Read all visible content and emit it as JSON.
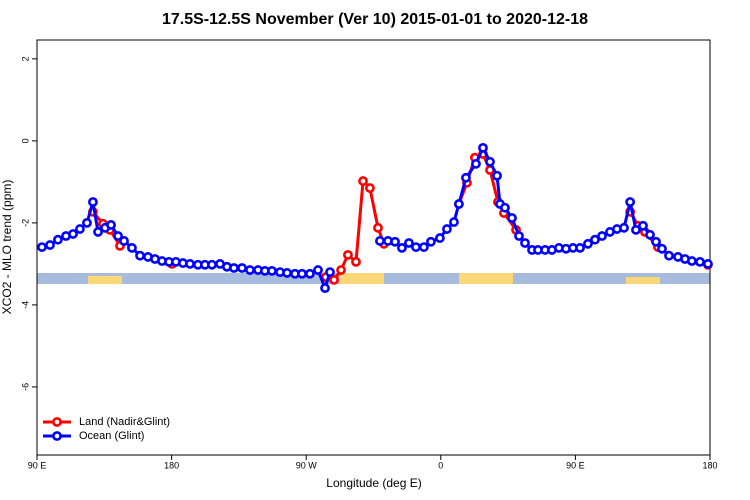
{
  "chart_data": {
    "type": "line",
    "title": "17.5S-12.5S November (Ver 10)   2015-01-01 to 2020-12-18",
    "x_label": "Longitude (deg E)",
    "y_label": "XCO2 - MLO trend (ppm)",
    "xlim": [
      90,
      540
    ],
    "ylim": [
      -7.66,
      2.46
    ],
    "xticks": [
      {
        "value": 90,
        "label": "90 E"
      },
      180,
      {
        "value": 270,
        "label": "90 W"
      },
      {
        "value": 360,
        "label": "0"
      },
      {
        "value": 450,
        "label": "90 E"
      },
      {
        "value": 540,
        "label": "180"
      }
    ],
    "yticks": [
      2,
      0,
      -2,
      -4,
      -6
    ],
    "legend": "bottom-left",
    "series": [
      {
        "name": "Land (Nadir&Glint)",
        "color": "#ff0000",
        "x": [
          127.4,
          134.1,
          138.8,
          145.5,
          null,
          180.3,
          null,
          283.2,
          288.6,
          293.3,
          297.9,
          303.3,
          308.0,
          312.6,
          318.0,
          322.0,
          null,
          372.1,
          377.5,
          382.8,
          388.2,
          392.9,
          398.2,
          402.2,
          410.3,
          null,
          486.6,
          491.9,
          496.5,
          505.2,
          null,
          538.6
        ],
        "values": [
          -1.73,
          -2.02,
          -2.17,
          -2.56,
          null,
          -3.0,
          null,
          -3.32,
          -3.39,
          -3.15,
          -2.78,
          -2.95,
          -0.98,
          -1.15,
          -2.12,
          -2.51,
          null,
          -1.54,
          -1.02,
          -0.41,
          -0.32,
          -0.71,
          -1.49,
          -1.76,
          -2.17,
          null,
          -1.73,
          -2.07,
          -2.22,
          -2.59,
          null,
          -3.02
        ]
      },
      {
        "name": "Ocean (Glint)",
        "color": "#0000ff",
        "x": [
          93.3,
          98.7,
          104.0,
          109.4,
          114.1,
          118.7,
          123.4,
          127.4,
          130.8,
          135.5,
          139.5,
          144.2,
          148.2,
          153.5,
          158.9,
          164.2,
          168.9,
          173.6,
          178.3,
          182.9,
          187.6,
          192.3,
          197.6,
          202.3,
          207.0,
          212.4,
          217.0,
          221.7,
          227.1,
          232.4,
          237.8,
          242.4,
          247.1,
          252.5,
          257.2,
          262.5,
          267.2,
          272.5,
          277.9,
          282.6,
          285.9,
          null,
          319.3,
          324.7,
          329.4,
          334.0,
          338.7,
          343.4,
          348.7,
          353.4,
          359.4,
          364.1,
          368.8,
          372.1,
          376.8,
          383.5,
          388.2,
          392.9,
          397.6,
          399.6,
          402.9,
          407.6,
          412.3,
          416.3,
          421.0,
          425.0,
          429.7,
          434.3,
          439.0,
          443.7,
          448.4,
          453.1,
          458.4,
          463.1,
          467.8,
          473.1,
          477.8,
          482.5,
          486.6,
          490.5,
          495.2,
          499.9,
          503.9,
          507.9,
          512.6,
          518.6,
          523.3,
          527.9,
          533.3,
          538.6
        ],
        "values": [
          -2.59,
          -2.54,
          -2.41,
          -2.32,
          -2.27,
          -2.15,
          -2.0,
          -1.49,
          -2.22,
          -2.12,
          -2.05,
          -2.32,
          -2.44,
          -2.61,
          -2.8,
          -2.83,
          -2.88,
          -2.93,
          -2.95,
          -2.95,
          -2.98,
          -3.0,
          -3.02,
          -3.02,
          -3.02,
          -3.0,
          -3.07,
          -3.1,
          -3.1,
          -3.15,
          -3.15,
          -3.17,
          -3.17,
          -3.2,
          -3.22,
          -3.24,
          -3.24,
          -3.24,
          -3.15,
          -3.59,
          -3.2,
          null,
          -2.44,
          -2.44,
          -2.46,
          -2.61,
          -2.49,
          -2.59,
          -2.59,
          -2.46,
          -2.37,
          -2.15,
          -1.98,
          -1.54,
          -0.9,
          -0.56,
          -0.17,
          -0.51,
          -0.85,
          -1.54,
          -1.63,
          -1.88,
          -2.32,
          -2.49,
          -2.66,
          -2.66,
          -2.66,
          -2.66,
          -2.61,
          -2.63,
          -2.61,
          -2.61,
          -2.51,
          -2.41,
          -2.32,
          -2.22,
          -2.15,
          -2.12,
          -1.49,
          -2.17,
          -2.07,
          -2.29,
          -2.46,
          -2.63,
          -2.8,
          -2.83,
          -2.88,
          -2.93,
          -2.95,
          -3.0
        ]
      }
    ]
  }
}
